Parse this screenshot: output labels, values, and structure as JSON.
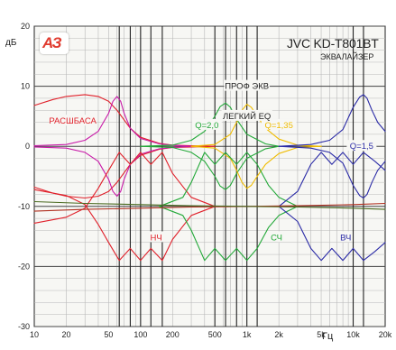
{
  "chart_data": {
    "type": "line",
    "x_scale": "log",
    "xlim": [
      10,
      20000
    ],
    "ylim": [
      -30,
      20
    ],
    "ylabel": "дБ",
    "xlabel": "Гц",
    "grid": true,
    "x_ticks": [
      {
        "v": 10,
        "label": "10"
      },
      {
        "v": 20,
        "label": "20"
      },
      {
        "v": 50,
        "label": "50"
      },
      {
        "v": 100,
        "label": "100"
      },
      {
        "v": 200,
        "label": "200"
      },
      {
        "v": 500,
        "label": "500"
      },
      {
        "v": 1000,
        "label": "1k"
      },
      {
        "v": 2000,
        "label": "2k"
      },
      {
        "v": 5000,
        "label": "5k"
      },
      {
        "v": 10000,
        "label": "10k"
      },
      {
        "v": 20000,
        "label": "20k"
      }
    ],
    "y_ticks": [
      20,
      10,
      0,
      -10,
      -20,
      -30
    ],
    "marked_freqs": [
      63,
      80,
      100,
      125,
      160,
      500,
      630,
      800,
      1000,
      1250,
      10000,
      12500
    ],
    "series": [
      {
        "id": "rashbasa-plus",
        "color": "#e0202a",
        "x": [
          10,
          15,
          20,
          30,
          40,
          50,
          60,
          80,
          100,
          150,
          200,
          300,
          500
        ],
        "y": [
          6.8,
          7.8,
          8.3,
          8.6,
          8.3,
          7.5,
          6.0,
          3.0,
          1.5,
          0.5,
          0.2,
          0.1,
          0
        ]
      },
      {
        "id": "rashbasa-minus",
        "color": "#e0202a",
        "x": [
          10,
          15,
          20,
          30,
          40,
          50,
          60,
          80,
          100,
          150,
          200,
          300,
          500
        ],
        "y": [
          -6.8,
          -7.8,
          -8.3,
          -8.6,
          -8.3,
          -7.5,
          -6.0,
          -3.0,
          -1.5,
          -0.5,
          -0.2,
          -0.1,
          0
        ]
      },
      {
        "id": "prof-low-plus",
        "color": "#c81aa8",
        "x": [
          10,
          20,
          30,
          40,
          50,
          55,
          60,
          65,
          70,
          80,
          100,
          150,
          200,
          300
        ],
        "y": [
          0.1,
          0.3,
          1.0,
          2.5,
          5.5,
          7.5,
          8.3,
          7.5,
          5.5,
          3.0,
          1.3,
          0.4,
          0.2,
          0
        ]
      },
      {
        "id": "prof-low-minus",
        "color": "#c81aa8",
        "x": [
          10,
          20,
          30,
          40,
          50,
          55,
          60,
          65,
          70,
          80,
          100,
          150,
          200,
          300
        ],
        "y": [
          -0.1,
          -0.3,
          -1.0,
          -2.5,
          -5.5,
          -7.5,
          -8.3,
          -7.5,
          -5.5,
          -3.0,
          -1.3,
          -0.4,
          -0.2,
          0
        ]
      },
      {
        "id": "prof-mid-plus",
        "color": "#22a838",
        "x": [
          100,
          200,
          300,
          400,
          500,
          560,
          630,
          700,
          800,
          1000,
          1500,
          2000
        ],
        "y": [
          0,
          0.2,
          1.0,
          2.5,
          5.0,
          6.6,
          7.2,
          6.5,
          4.5,
          2.0,
          0.4,
          0
        ]
      },
      {
        "id": "prof-mid-minus",
        "color": "#22a838",
        "x": [
          100,
          200,
          300,
          400,
          500,
          560,
          630,
          700,
          800,
          1000,
          1500,
          2000
        ],
        "y": [
          0,
          -0.2,
          -1.0,
          -2.5,
          -5.0,
          -6.6,
          -7.2,
          -6.5,
          -4.5,
          -2.0,
          -0.4,
          0
        ]
      },
      {
        "id": "prof-upmid-plus",
        "color": "#f0bc00",
        "x": [
          300,
          500,
          700,
          800,
          900,
          1000,
          1100,
          1250,
          1500,
          2000,
          3000,
          5000
        ],
        "y": [
          0,
          0.3,
          2.0,
          4.0,
          6.0,
          7.0,
          6.5,
          5.0,
          3.0,
          1.2,
          0.2,
          0
        ]
      },
      {
        "id": "prof-upmid-minus",
        "color": "#f0bc00",
        "x": [
          300,
          500,
          700,
          800,
          900,
          1000,
          1100,
          1250,
          1500,
          2000,
          3000,
          5000
        ],
        "y": [
          0,
          -0.3,
          -2.0,
          -4.0,
          -6.0,
          -7.0,
          -6.5,
          -5.0,
          -3.0,
          -1.2,
          -0.2,
          0
        ]
      },
      {
        "id": "prof-high-plus",
        "color": "#2a2aa6",
        "x": [
          2000,
          4000,
          6000,
          8000,
          10000,
          11500,
          12500,
          13500,
          15000,
          17000,
          20000
        ],
        "y": [
          0,
          0.3,
          1.0,
          2.8,
          6.5,
          8.2,
          8.6,
          8.0,
          6.0,
          4.0,
          2.5
        ]
      },
      {
        "id": "prof-high-minus",
        "color": "#2a2aa6",
        "x": [
          2000,
          4000,
          6000,
          8000,
          10000,
          11500,
          12500,
          13500,
          15000,
          17000,
          20000
        ],
        "y": [
          0,
          -0.3,
          -1.0,
          -2.8,
          -6.5,
          -8.2,
          -8.6,
          -8.0,
          -6.0,
          -4.0,
          -2.5
        ]
      },
      {
        "id": "easy-low-plus",
        "color": "#e0202a",
        "x": [
          10,
          20,
          30,
          40,
          50,
          63,
          80,
          100,
          125,
          160,
          200,
          300,
          500
        ],
        "y": [
          -12.8,
          -11.8,
          -10.3,
          -7.0,
          -4.0,
          -1.0,
          -3.0,
          -1.0,
          -3.0,
          -1.0,
          -4.5,
          -8.5,
          -10.0
        ]
      },
      {
        "id": "easy-low-minus",
        "color": "#e0202a",
        "x": [
          10,
          20,
          30,
          40,
          50,
          63,
          80,
          100,
          125,
          160,
          200,
          300,
          500
        ],
        "y": [
          -7.2,
          -8.2,
          -9.7,
          -13.0,
          -16.0,
          -19.0,
          -17.0,
          -19.0,
          -17.0,
          -19.0,
          -15.5,
          -11.5,
          -10.0
        ]
      },
      {
        "id": "easy-mid-plus",
        "color": "#22a838",
        "x": [
          150,
          250,
          300,
          400,
          500,
          630,
          800,
          1000,
          1250,
          1600,
          2000,
          3000
        ],
        "y": [
          -10.0,
          -8.5,
          -6.0,
          -1.0,
          -3.0,
          -1.0,
          -3.0,
          -1.0,
          -3.0,
          -6.5,
          -8.5,
          -10.0
        ]
      },
      {
        "id": "easy-mid-minus",
        "color": "#22a838",
        "x": [
          150,
          250,
          300,
          400,
          500,
          630,
          800,
          1000,
          1250,
          1600,
          2000,
          3000
        ],
        "y": [
          -10.0,
          -11.5,
          -14.0,
          -19.0,
          -17.0,
          -19.0,
          -17.0,
          -19.0,
          -17.0,
          -13.5,
          -11.5,
          -10.0
        ]
      },
      {
        "id": "easy-high-plus",
        "color": "#2a2aa6",
        "x": [
          2000,
          3000,
          4000,
          5000,
          6300,
          8000,
          10000,
          12500,
          16000,
          20000
        ],
        "y": [
          -10.0,
          -7.5,
          -3.0,
          -1.0,
          -3.0,
          -1.0,
          -3.0,
          -1.0,
          -2.5,
          -4.0
        ]
      },
      {
        "id": "easy-high-minus",
        "color": "#2a2aa6",
        "x": [
          2000,
          3000,
          4000,
          5000,
          6300,
          8000,
          10000,
          12500,
          16000,
          20000
        ],
        "y": [
          -10.0,
          -12.5,
          -17.0,
          -19.0,
          -17.0,
          -19.0,
          -17.0,
          -19.0,
          -17.5,
          -16.0
        ]
      },
      {
        "id": "tilt-warm",
        "color": "#b03020",
        "x": [
          10,
          30,
          100,
          300,
          1000,
          3000,
          10000,
          20000
        ],
        "y": [
          -10.8,
          -10.5,
          -10.3,
          -10.1,
          -10.0,
          -9.9,
          -9.7,
          -9.5
        ]
      },
      {
        "id": "tilt-bright",
        "color": "#4a6a20",
        "x": [
          10,
          30,
          100,
          300,
          1000,
          3000,
          10000,
          20000
        ],
        "y": [
          -9.2,
          -9.5,
          -9.7,
          -9.9,
          -10.0,
          -10.1,
          -10.3,
          -10.5
        ]
      }
    ],
    "annotations": [
      {
        "text": "РАСШБАСА",
        "x": 23,
        "y": 4.2,
        "color": "#e0202a"
      },
      {
        "text": "ПРОФ ЭКВ",
        "x": 1000,
        "y": 10.0,
        "color": "#222222"
      },
      {
        "text": "Q=2,0",
        "x": 420,
        "y": 3.5,
        "color": "#22a838"
      },
      {
        "text": "Q=1,35",
        "x": 2000,
        "y": 3.5,
        "color": "#f0bc00"
      },
      {
        "text": "Q=1,5",
        "x": 12000,
        "y": 0.0,
        "color": "#2a2aa6"
      },
      {
        "text": "ЛЕГКИЙ EQ",
        "x": 1000,
        "y": 5.0,
        "color": "#222222"
      },
      {
        "text": "НЧ",
        "x": 140,
        "y": -15.2,
        "color": "#e0202a"
      },
      {
        "text": "СЧ",
        "x": 1900,
        "y": -15.2,
        "color": "#22a838"
      },
      {
        "text": "ВЧ",
        "x": 8500,
        "y": -15.2,
        "color": "#2a2aa6"
      }
    ]
  },
  "header": {
    "title": "JVC KD-T801BT",
    "subtitle": "ЭКВАЛАЙЗЕР"
  },
  "logo": {
    "text": "АЗ",
    "color": "#e03a2e"
  },
  "colors": {
    "plot_bg": "#f7f7f4",
    "grid": "#b8b8b8",
    "grid_marked": "#222222",
    "axis_text": "#222222"
  }
}
